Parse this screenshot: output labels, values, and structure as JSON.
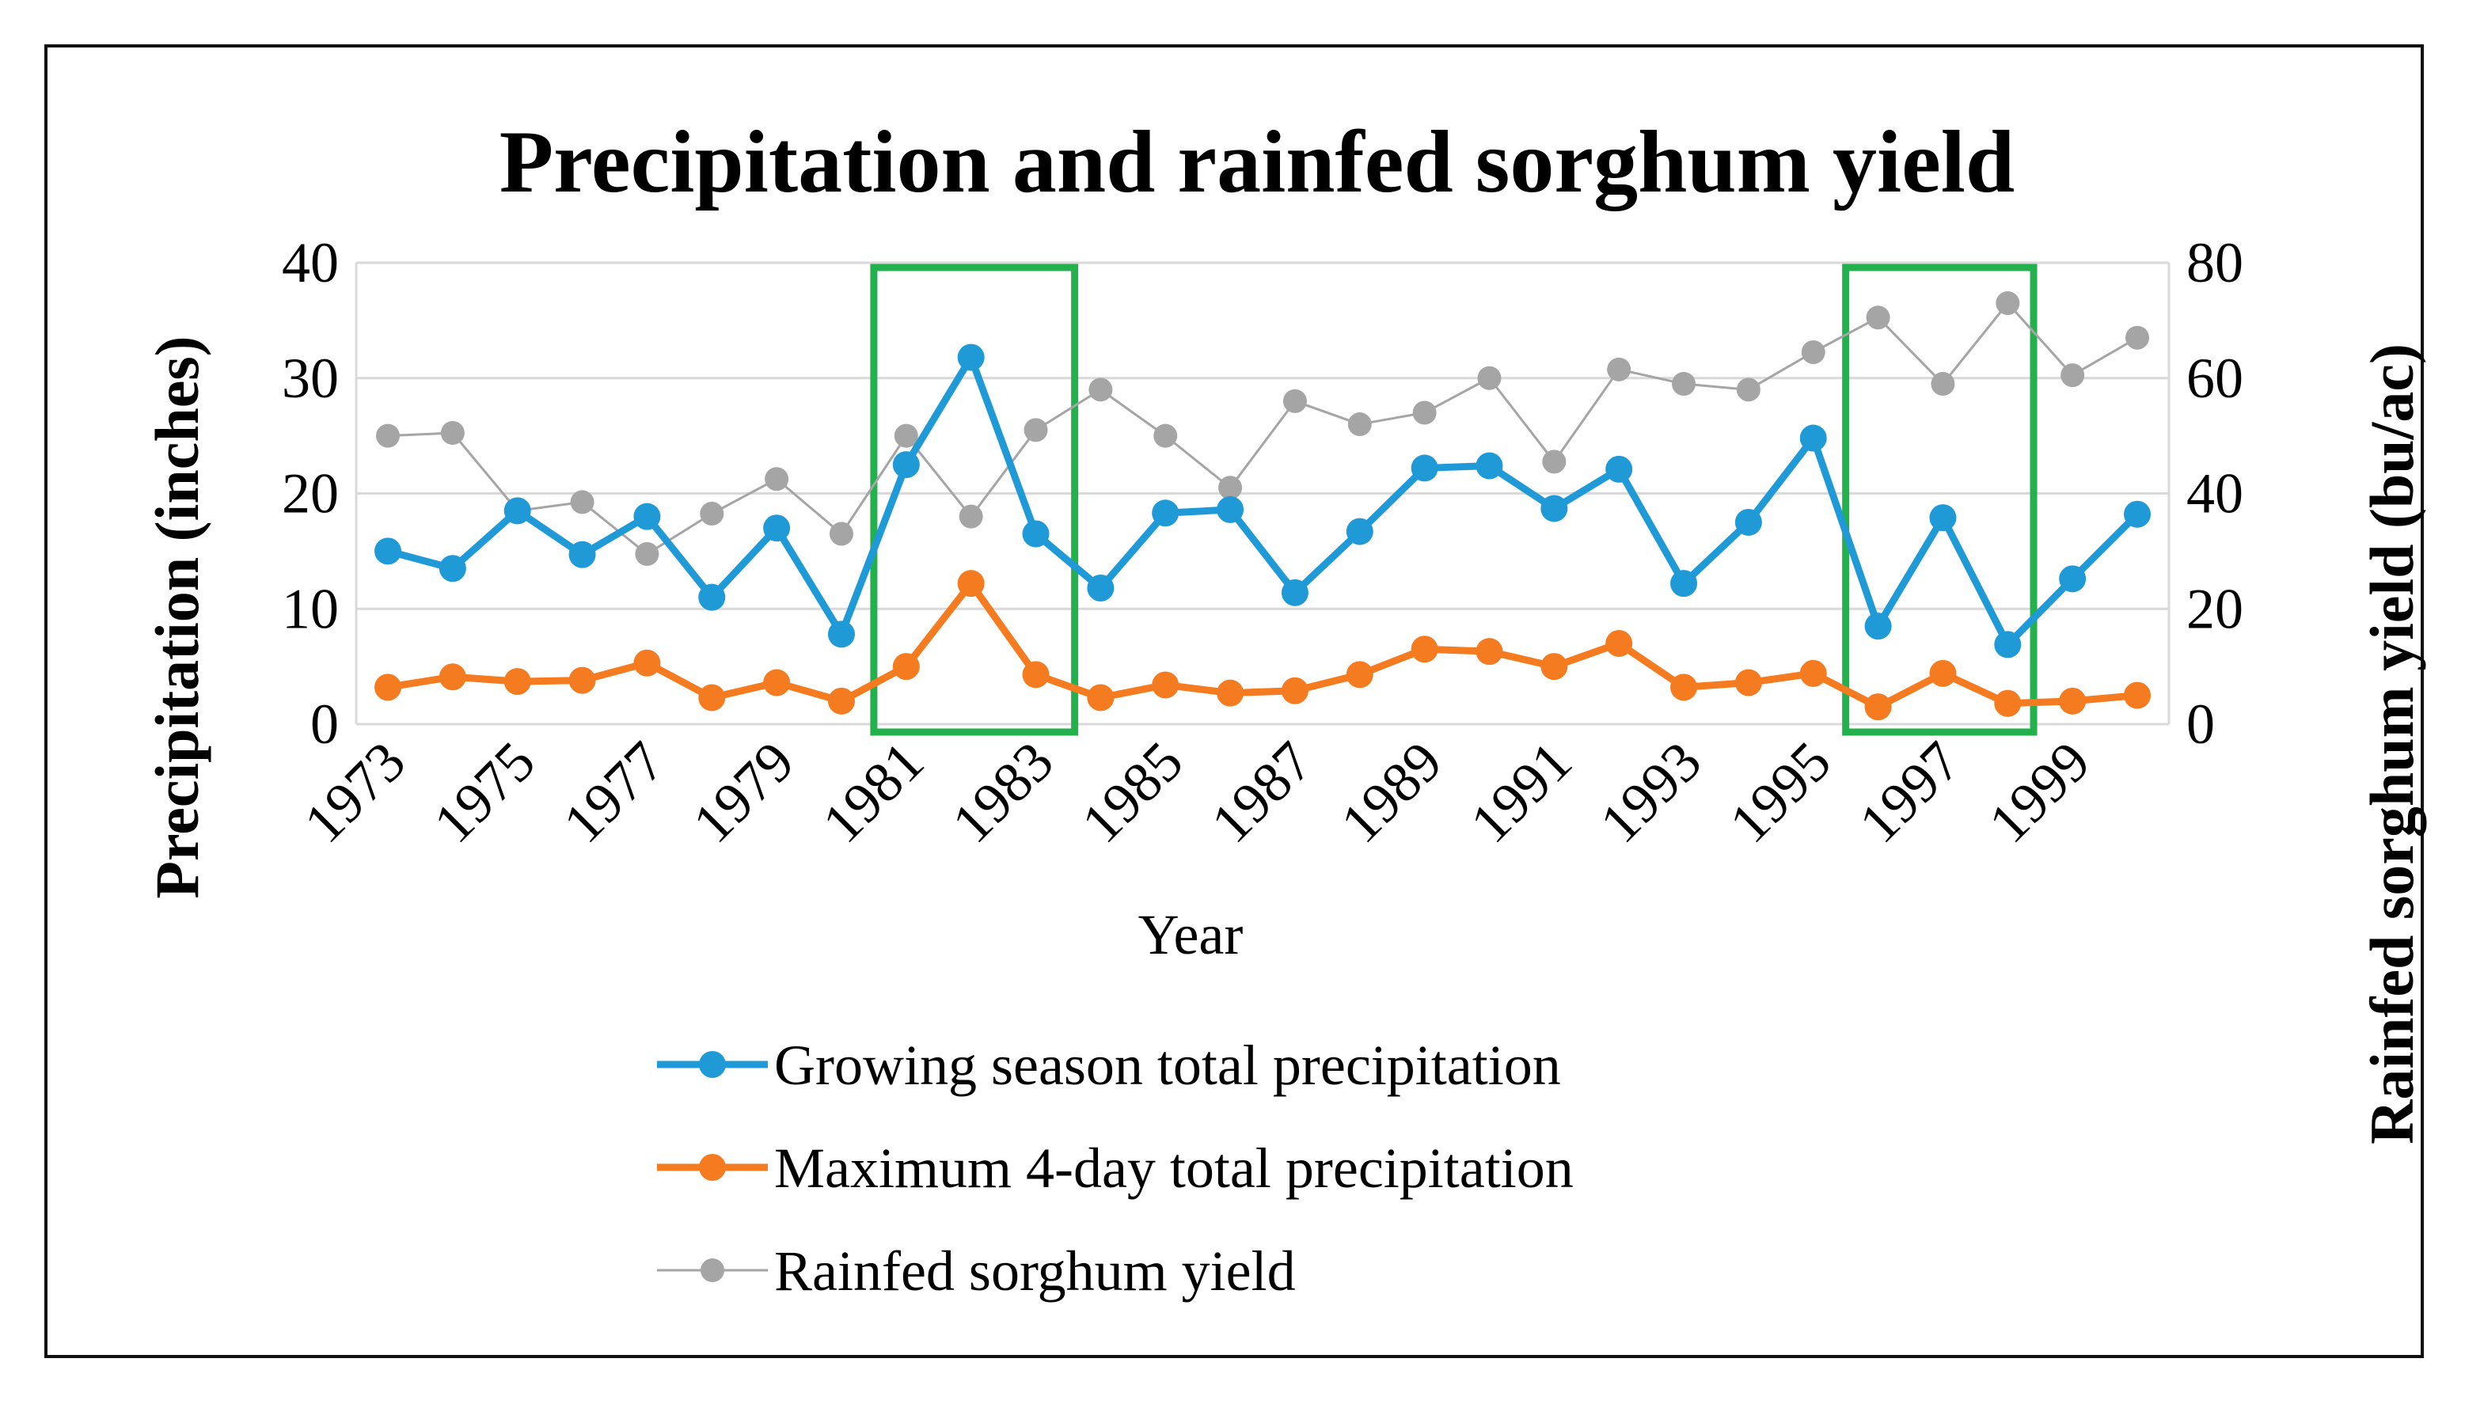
{
  "chart_data": {
    "type": "line",
    "title": "Precipitation and rainfed sorghum yield",
    "xlabel": "Year",
    "ylabel": "Precipitation  (inches)",
    "y2label": "Rainfed sorghum  yield  (bu/ac)",
    "ylim": [
      0,
      40
    ],
    "y2lim": [
      0,
      80
    ],
    "yticks": [
      "0",
      "10",
      "20",
      "30",
      "40"
    ],
    "y2ticks": [
      "0",
      "20",
      "40",
      "60",
      "80"
    ],
    "grid": true,
    "legend_position": "bottom",
    "x": [
      1973,
      1974,
      1975,
      1976,
      1977,
      1978,
      1979,
      1980,
      1981,
      1982,
      1983,
      1984,
      1985,
      1986,
      1987,
      1988,
      1989,
      1990,
      1991,
      1992,
      1993,
      1994,
      1995,
      1996,
      1997,
      1998,
      1999,
      2000
    ],
    "xtick_labels": [
      "1973",
      "1975",
      "1977",
      "1979",
      "1981",
      "1983",
      "1985",
      "1987",
      "1989",
      "1991",
      "1993",
      "1995",
      "1997",
      "1999"
    ],
    "series": [
      {
        "name": "Growing season total precipitation",
        "axis": "left",
        "color": "#1f9ad6",
        "values": [
          15.0,
          13.5,
          18.5,
          14.7,
          18.0,
          11.0,
          17.0,
          7.8,
          22.5,
          31.8,
          16.5,
          11.8,
          18.3,
          18.6,
          11.4,
          16.7,
          22.2,
          22.4,
          18.7,
          22.1,
          12.2,
          17.5,
          24.8,
          8.5,
          17.9,
          6.9,
          12.6,
          18.2
        ]
      },
      {
        "name": "Maximum 4-day total precipitation",
        "axis": "left",
        "color": "#f47b20",
        "values": [
          3.2,
          4.1,
          3.7,
          3.8,
          5.3,
          2.3,
          3.6,
          2.0,
          5.0,
          12.2,
          4.3,
          2.3,
          3.4,
          2.7,
          2.9,
          4.3,
          6.5,
          6.3,
          5.0,
          7.0,
          3.2,
          3.6,
          4.4,
          1.5,
          4.4,
          1.8,
          2.0,
          2.5
        ]
      },
      {
        "name": "Rainfed sorghum yield",
        "axis": "right",
        "color": "#a5a5a5",
        "values": [
          50.0,
          50.5,
          37.0,
          38.5,
          29.5,
          36.5,
          42.5,
          33.0,
          50.0,
          36.0,
          51.0,
          58.0,
          50.0,
          41.0,
          56.0,
          52.0,
          54.0,
          60.0,
          45.5,
          61.5,
          59.0,
          58.0,
          64.5,
          70.5,
          59.0,
          73.0,
          60.5,
          67.0
        ]
      }
    ],
    "highlights": [
      {
        "x_start": 1980.5,
        "x_end": 1983.6,
        "color": "#22b14c"
      },
      {
        "x_start": 1995.5,
        "x_end": 1998.4,
        "color": "#22b14c"
      }
    ]
  }
}
